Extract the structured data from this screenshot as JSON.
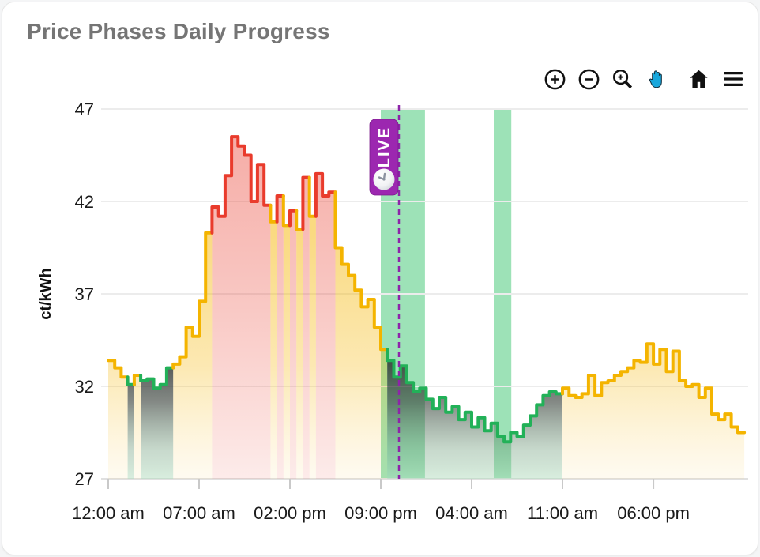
{
  "title": "Price Phases Daily Progress",
  "toolbar": {
    "buttons": [
      {
        "name": "zoom-in-icon",
        "color": "#111111"
      },
      {
        "name": "zoom-out-icon",
        "color": "#111111"
      },
      {
        "name": "box-zoom-icon",
        "color": "#111111"
      },
      {
        "name": "pan-icon",
        "color": "#18A7DC",
        "active": true
      },
      {
        "name": "home-icon",
        "color": "#111111",
        "sep": true
      },
      {
        "name": "menu-icon",
        "color": "#111111"
      }
    ]
  },
  "live_marker": {
    "label": "LIVE",
    "color": "#9C27B0",
    "line_color": "#8E24AA",
    "time_hour": 22.4
  },
  "chart_data": {
    "type": "step-area",
    "title": "",
    "xlabel": "",
    "ylabel": "ct/kWh",
    "ylim": [
      27,
      47
    ],
    "yticks": [
      27,
      32,
      37,
      42,
      47
    ],
    "x_tick_hours": [
      0,
      7,
      14,
      21,
      28,
      35,
      42
    ],
    "x_tick_labels": [
      "12:00 am",
      "07:00 am",
      "02:00 pm",
      "09:00 pm",
      "04:00 am",
      "11:00 am",
      "06:00 pm"
    ],
    "step_hours": 0.5,
    "grid": true,
    "phase_codes": {
      "y": "normal",
      "r": "expensive",
      "g": "cheap"
    },
    "phase_colors": {
      "normal": "#F4B400",
      "expensive": "#E93B2C",
      "cheap": "#22B158"
    },
    "highlight_band_color": "#25BE5F",
    "highlight_bands_hours": [
      [
        21.0,
        24.4
      ],
      [
        29.7,
        31.05
      ]
    ],
    "values": [
      33.4,
      33.0,
      32.5,
      32.1,
      32.6,
      32.3,
      32.4,
      31.9,
      32.1,
      33.0,
      33.2,
      33.6,
      35.2,
      34.7,
      36.6,
      40.3,
      41.7,
      41.2,
      43.4,
      45.5,
      45.0,
      44.5,
      42.0,
      44.0,
      41.8,
      40.9,
      42.3,
      40.7,
      41.5,
      40.5,
      43.3,
      41.2,
      43.5,
      42.3,
      42.5,
      39.5,
      38.6,
      38.0,
      37.2,
      36.3,
      36.7,
      35.2,
      34.0,
      33.4,
      32.5,
      33.1,
      32.2,
      31.7,
      31.9,
      31.3,
      30.8,
      31.4,
      30.6,
      30.9,
      30.2,
      30.6,
      29.8,
      30.3,
      29.6,
      30.0,
      29.3,
      29.0,
      29.5,
      29.3,
      29.9,
      30.4,
      31.0,
      31.5,
      31.7,
      31.6,
      31.9,
      31.5,
      31.4,
      31.6,
      32.6,
      31.5,
      32.2,
      32.3,
      32.6,
      32.8,
      33.0,
      33.4,
      33.3,
      34.3,
      33.2,
      34.0,
      32.8,
      33.9,
      32.3,
      32.0,
      32.1,
      31.4,
      31.9,
      30.5,
      30.2,
      30.5,
      29.8,
      29.5
    ],
    "phases": "yyygygggggyyyyyyrrrrrrrrryryryryrrryyyyyyyygggggggggggggggggggggggggggyyyyyyyyyyyyyyyyyyyyyyyyyyyy"
  }
}
